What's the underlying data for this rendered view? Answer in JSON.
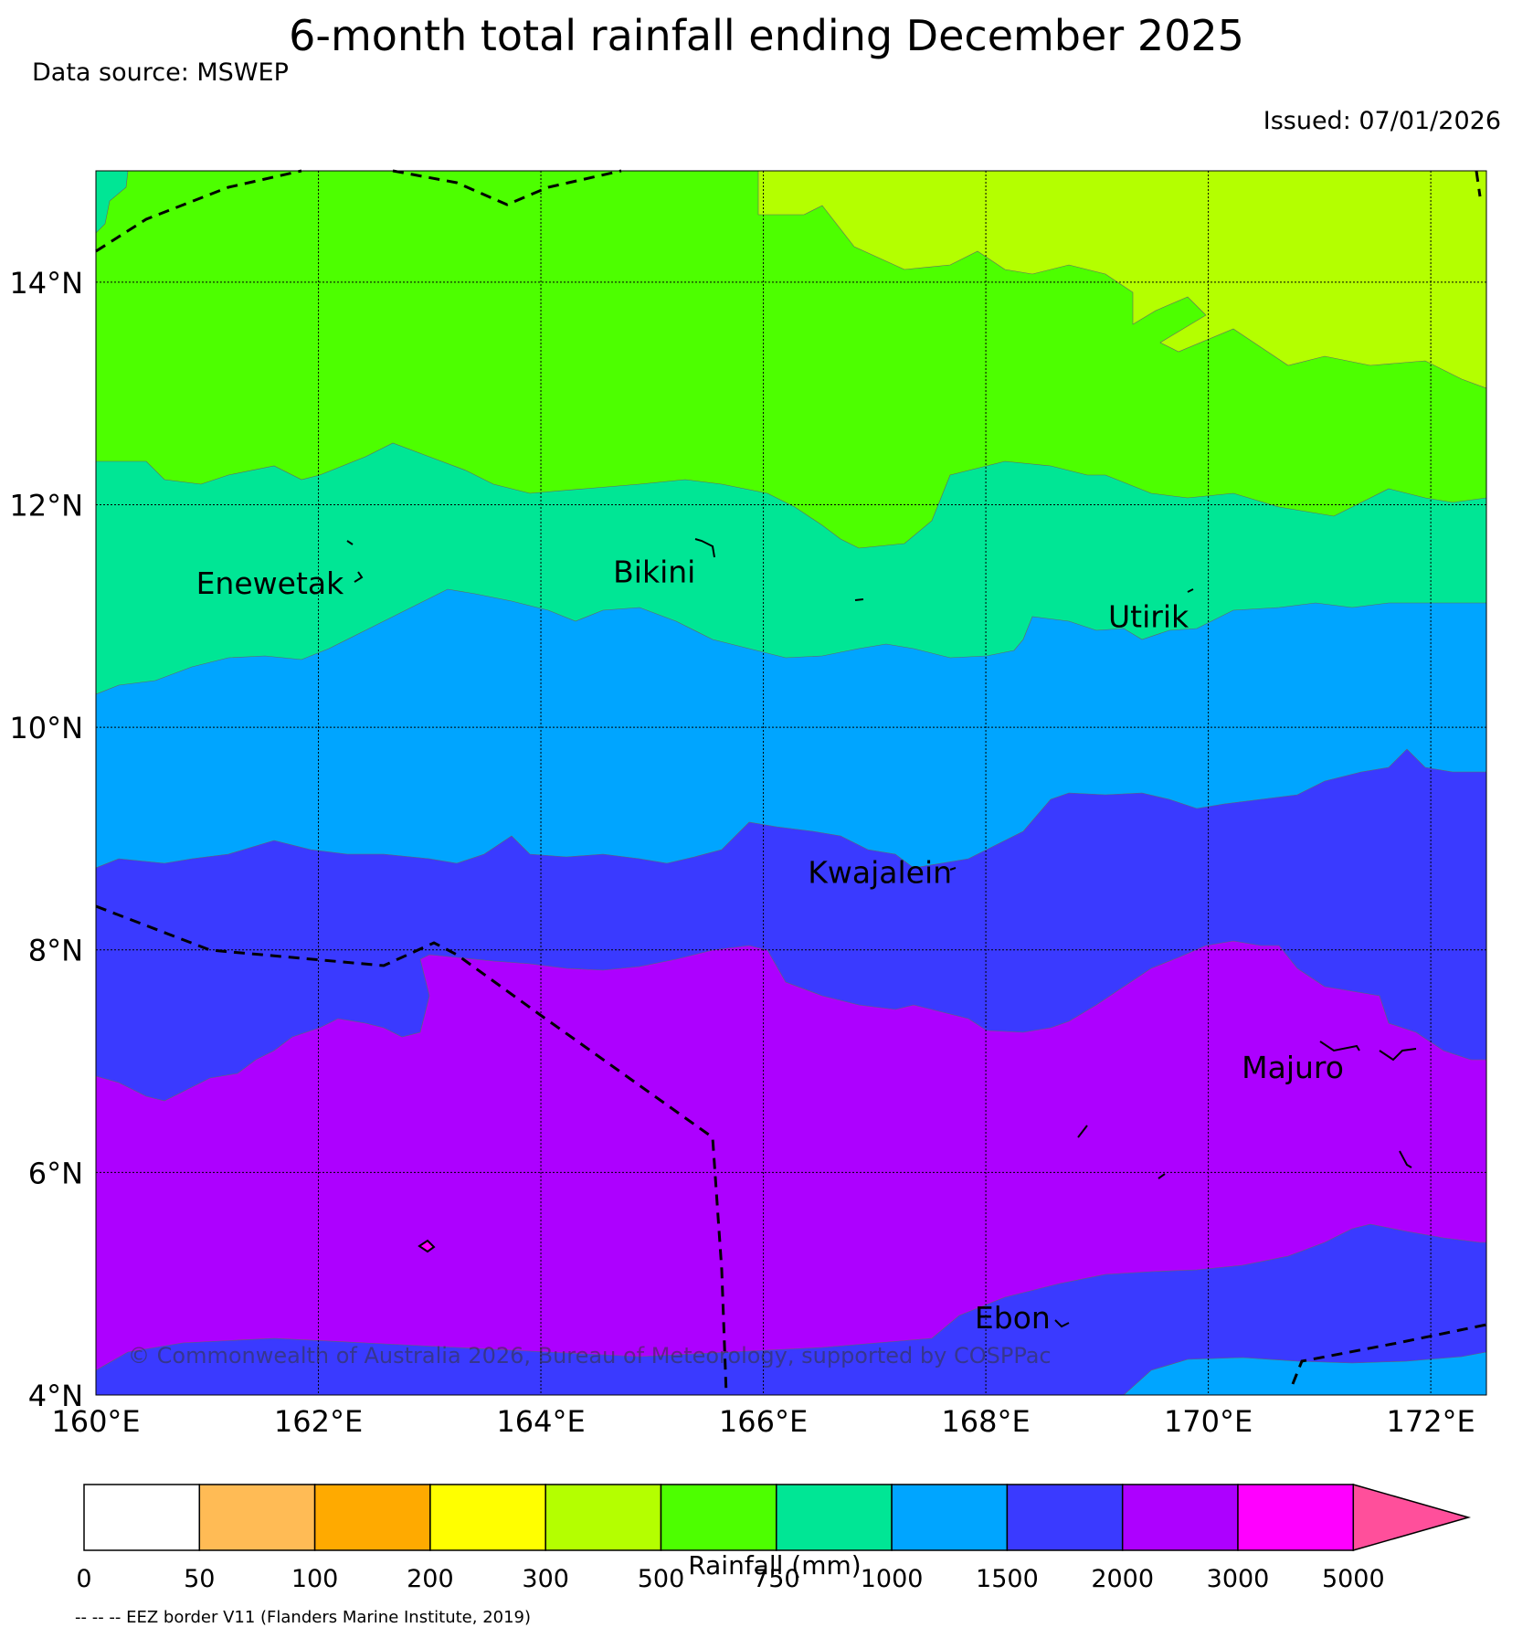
{
  "title": "6-month total rainfall ending December 2025",
  "data_source": "Data source: MSWEP",
  "issued": "Issued: 07/01/2026",
  "copyright": "© Commonwealth of Australia 2026, Bureau of Meteorology, supported by COSPPac",
  "footnote": "-- -- -- EEZ border V11 (Flanders Marine Institute, 2019)",
  "map": {
    "lon_range": [
      160,
      172.5
    ],
    "lat_range": [
      4,
      15
    ],
    "lon_ticks": [
      "160°E",
      "162°E",
      "164°E",
      "166°E",
      "168°E",
      "170°E",
      "172°E"
    ],
    "lat_ticks": [
      "4°N",
      "6°N",
      "8°N",
      "10°N",
      "12°N",
      "14°N"
    ],
    "grid": true,
    "places": [
      {
        "name": "Enewetak",
        "lon": 160.9,
        "lat": 11.2
      },
      {
        "name": "Bikini",
        "lon": 164.65,
        "lat": 11.3
      },
      {
        "name": "Utirik",
        "lon": 169.1,
        "lat": 10.9
      },
      {
        "name": "Kwajalein",
        "lon": 166.4,
        "lat": 8.6
      },
      {
        "name": "Majuro",
        "lon": 170.3,
        "lat": 6.85
      },
      {
        "name": "Ebon",
        "lon": 167.9,
        "lat": 4.6
      }
    ]
  },
  "legend": {
    "label": "Rainfall (mm)",
    "ticks": [
      "0",
      "50",
      "100",
      "200",
      "300",
      "500",
      "750",
      "1000",
      "1500",
      "2000",
      "3000",
      "5000"
    ],
    "colors": [
      "#ffffff",
      "#ffbb55",
      "#ffaa00",
      "#ffff00",
      "#b4ff00",
      "#4dff00",
      "#00e695",
      "#00a5ff",
      "#3a3aff",
      "#ad00ff",
      "#ff00ff",
      "#ff4f9b"
    ]
  }
}
